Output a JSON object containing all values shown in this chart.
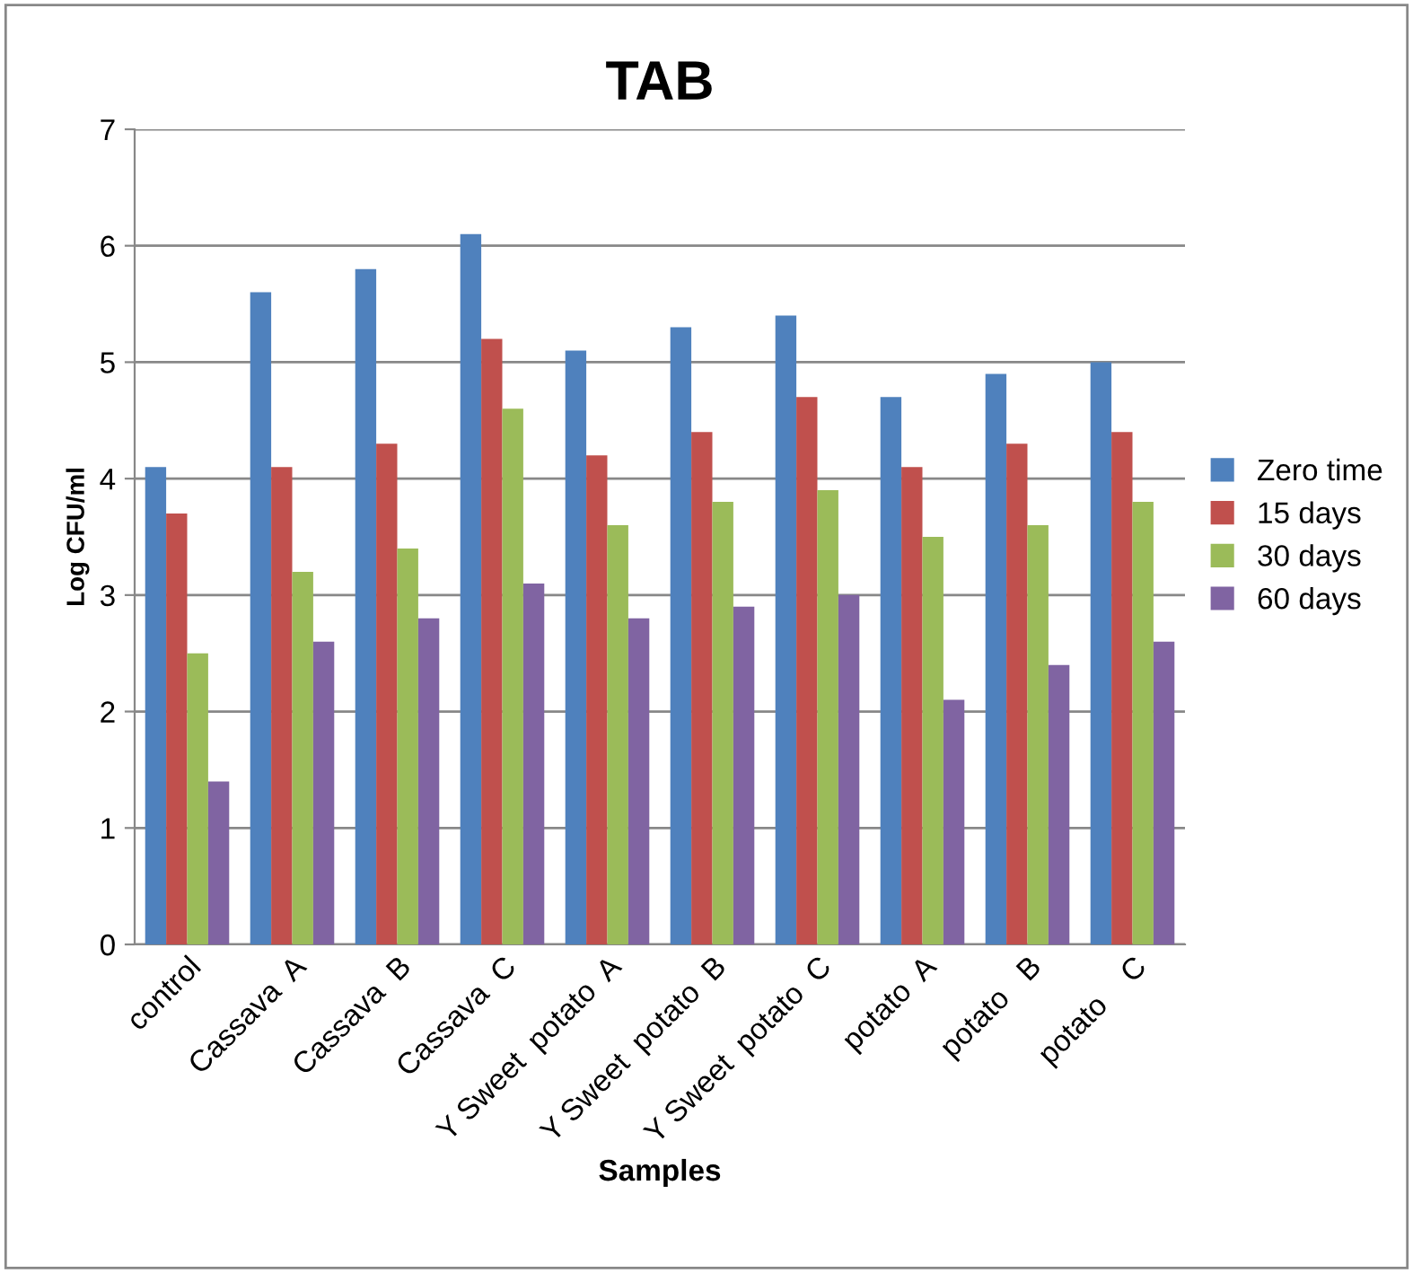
{
  "chart_data": {
    "type": "bar",
    "title": "TAB",
    "xlabel": "Samples",
    "ylabel": "Log CFU/ml",
    "categories": [
      "control",
      "Cassava  A",
      "Cassava  B",
      "Cassava  C",
      "Y Sweet  potato  A",
      "Y Sweet  potato  B",
      "Y Sweet  potato  C",
      "potato  A",
      "potato   B",
      "potato    C"
    ],
    "series": [
      {
        "name": "Zero time",
        "color": "#4f81bd",
        "values": [
          4.1,
          5.6,
          5.8,
          6.1,
          5.1,
          5.3,
          5.4,
          4.7,
          4.9,
          5.0
        ]
      },
      {
        "name": "15 days",
        "color": "#c0504d",
        "values": [
          3.7,
          4.1,
          4.3,
          5.2,
          4.2,
          4.4,
          4.7,
          4.1,
          4.3,
          4.4
        ]
      },
      {
        "name": "30 days",
        "color": "#9bbb59",
        "values": [
          2.5,
          3.2,
          3.4,
          4.6,
          3.6,
          3.8,
          3.9,
          3.5,
          3.6,
          3.8
        ]
      },
      {
        "name": "60 days",
        "color": "#8064a2",
        "values": [
          1.4,
          2.6,
          2.8,
          3.1,
          2.8,
          2.9,
          3.0,
          2.1,
          2.4,
          2.6
        ]
      }
    ],
    "ylim": [
      0,
      7
    ],
    "yticks": [
      0,
      1,
      2,
      3,
      4,
      5,
      6,
      7
    ],
    "grid": "y",
    "legend": "right"
  }
}
